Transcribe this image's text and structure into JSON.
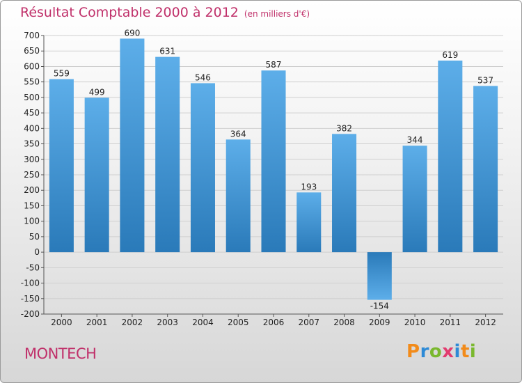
{
  "chart_data": {
    "type": "bar",
    "title": "Résultat Comptable 2000 à 2012",
    "subtitle": "(en milliers d'€)",
    "categories": [
      "2000",
      "2001",
      "2002",
      "2003",
      "2004",
      "2005",
      "2006",
      "2007",
      "2008",
      "2009",
      "2010",
      "2011",
      "2012"
    ],
    "values": [
      559,
      499,
      690,
      631,
      546,
      364,
      587,
      193,
      382,
      -154,
      344,
      619,
      537
    ],
    "ylim": [
      -200,
      700
    ],
    "yticks": [
      -200,
      -150,
      -100,
      -50,
      0,
      50,
      100,
      150,
      200,
      250,
      300,
      350,
      400,
      450,
      500,
      550,
      600,
      650,
      700
    ],
    "grid": true,
    "colors": {
      "bar_light": "#5daee9",
      "bar_dark": "#2a7ab9",
      "grid": "#cfcfcf"
    }
  },
  "footer": {
    "place": "MONTECH",
    "logo": "Proxiti",
    "logo_colors": [
      "#f28b1a",
      "#2d8ad6",
      "#7ab82e",
      "#e23c6f",
      "#2d8ad6",
      "#f28b1a",
      "#7ab82e"
    ]
  }
}
